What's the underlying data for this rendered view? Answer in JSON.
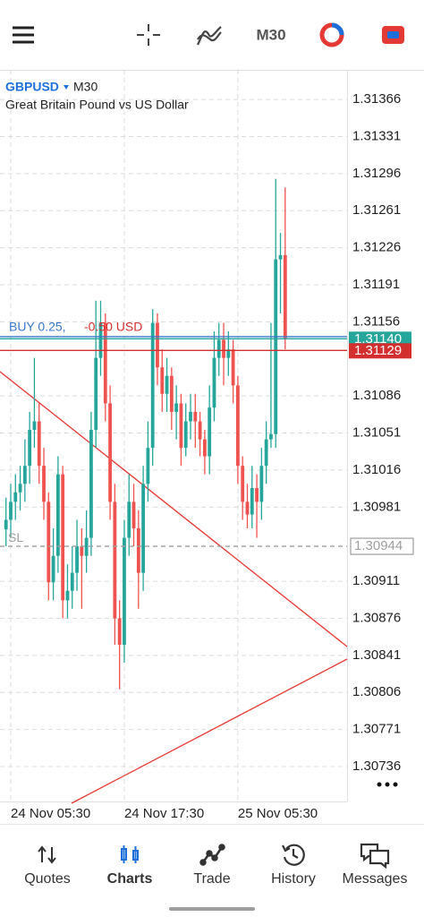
{
  "toolbar": {
    "timeframe": "M30"
  },
  "chart_data": {
    "type": "candlestick",
    "symbol": "GBPUSD",
    "timeframe": "M30",
    "subtitle": "Great Britain Pound vs US Dollar",
    "categories": [
      null,
      "24 Nov 05:30",
      null,
      null,
      null,
      null,
      null,
      null,
      null,
      null,
      null,
      null,
      null,
      null,
      null,
      null,
      null,
      null,
      null,
      null,
      null,
      null,
      null,
      null,
      null,
      "24 Nov 17:30",
      null,
      null,
      null,
      null,
      null,
      null,
      null,
      null,
      null,
      null,
      null,
      null,
      null,
      null,
      null,
      null,
      null,
      null,
      null,
      null,
      null,
      null,
      null,
      "25 Nov 05:30",
      null,
      null,
      null,
      null,
      null,
      null,
      null,
      null,
      null,
      null
    ],
    "open": [
      1.3096,
      1.30969,
      1.30986,
      1.30995,
      1.31003,
      1.3102,
      1.31054,
      1.31062,
      1.3102,
      1.30986,
      1.3091,
      1.30935,
      1.31012,
      1.30893,
      1.30902,
      1.30919,
      1.30944,
      1.30935,
      1.30952,
      1.31054,
      1.31122,
      1.31155,
      1.31079,
      1.30986,
      1.30876,
      1.30851,
      1.30952,
      1.30986,
      1.30961,
      1.30919,
      1.31003,
      1.31037,
      1.31155,
      1.31113,
      1.31088,
      1.31105,
      1.31071,
      1.31079,
      1.31037,
      1.31062,
      1.31071,
      1.31062,
      1.31045,
      1.31029,
      1.31075,
      1.31122,
      1.31139,
      1.31122,
      1.3113,
      1.31096,
      1.3102,
      1.30986,
      1.30974,
      1.30999,
      1.30986,
      1.3102,
      1.31045,
      1.3105,
      1.31215,
      1.31219
    ],
    "high": [
      1.3099,
      1.31003,
      1.31012,
      1.3102,
      1.31045,
      1.31071,
      1.31122,
      1.31079,
      1.31037,
      1.30995,
      1.30961,
      1.31029,
      1.3102,
      1.30927,
      1.30944,
      1.30969,
      1.30961,
      1.30978,
      1.31071,
      1.31176,
      1.31176,
      1.31164,
      1.31096,
      1.31003,
      1.30893,
      1.30969,
      1.31012,
      1.31003,
      1.30978,
      1.3102,
      1.31062,
      1.31168,
      1.31164,
      1.3113,
      1.31122,
      1.31113,
      1.31096,
      1.31088,
      1.31079,
      1.31088,
      1.31088,
      1.31071,
      1.31054,
      1.31096,
      1.31147,
      1.31155,
      1.31155,
      1.31147,
      1.31139,
      1.31105,
      1.31029,
      1.31003,
      1.3102,
      1.31012,
      1.31037,
      1.31062,
      1.31155,
      1.31291,
      1.3124,
      1.31283
    ],
    "low": [
      1.30944,
      1.30952,
      1.30969,
      1.30978,
      1.30986,
      1.31003,
      1.31037,
      1.31003,
      1.30969,
      1.30893,
      1.30893,
      1.30919,
      1.30876,
      1.30876,
      1.30885,
      1.30902,
      1.30885,
      1.30919,
      1.30935,
      1.31037,
      1.31105,
      1.31062,
      1.30969,
      1.30851,
      1.30809,
      1.30834,
      1.30935,
      1.30944,
      1.30885,
      1.30902,
      1.30986,
      1.3102,
      1.31096,
      1.31071,
      1.31071,
      1.31054,
      1.31045,
      1.3102,
      1.31029,
      1.31045,
      1.31037,
      1.31029,
      1.31012,
      1.31012,
      1.31062,
      1.31105,
      1.31096,
      1.31105,
      1.31079,
      1.31003,
      1.30969,
      1.30961,
      1.30961,
      1.30952,
      1.30969,
      1.31003,
      1.31037,
      1.31037,
      1.31164,
      1.3113
    ],
    "close": [
      1.30969,
      1.30986,
      1.30995,
      1.31003,
      1.3102,
      1.31054,
      1.31062,
      1.3102,
      1.30986,
      1.3091,
      1.30935,
      1.31012,
      1.30893,
      1.30902,
      1.30919,
      1.30944,
      1.30935,
      1.30952,
      1.31054,
      1.31122,
      1.31155,
      1.31079,
      1.30986,
      1.30876,
      1.30851,
      1.30952,
      1.30986,
      1.30961,
      1.30919,
      1.31003,
      1.31037,
      1.31155,
      1.31113,
      1.31088,
      1.31105,
      1.31071,
      1.31079,
      1.31037,
      1.31062,
      1.31071,
      1.31062,
      1.31045,
      1.31029,
      1.31075,
      1.31122,
      1.31139,
      1.31122,
      1.3113,
      1.31096,
      1.3102,
      1.30986,
      1.30974,
      1.30999,
      1.30986,
      1.3102,
      1.31045,
      1.3105,
      1.31215,
      1.31219,
      1.3114
    ],
    "colors": {
      "up": "#26a69a",
      "down": "#ef5350"
    },
    "ylim": [
      1.30703,
      1.31394
    ],
    "yticks": [
      1.31366,
      1.31331,
      1.31296,
      1.31261,
      1.31226,
      1.31191,
      1.31156,
      1.31086,
      1.31051,
      1.31016,
      1.30981,
      1.30911,
      1.30876,
      1.30841,
      1.30806,
      1.30771,
      1.30736
    ],
    "grid": true,
    "position": {
      "label": "BUY 0.25,",
      "profit": "-0.50 USD",
      "price": 1.31142,
      "color": "#3b78c9"
    },
    "price_lines": [
      {
        "price": {
          "value": 1.3114,
          "label": "1.31140"
        },
        "color": "#26a69a"
      },
      {
        "price": 1.31129,
        "color": "#d32f2f"
      }
    ],
    "stop_loss": {
      "label": "SL",
      "price": 1.30944,
      "color": "#9e9e9e"
    }
  },
  "tabs": {
    "items": [
      "Quotes",
      "Charts",
      "Trade",
      "History",
      "Messages"
    ],
    "active": 1
  }
}
